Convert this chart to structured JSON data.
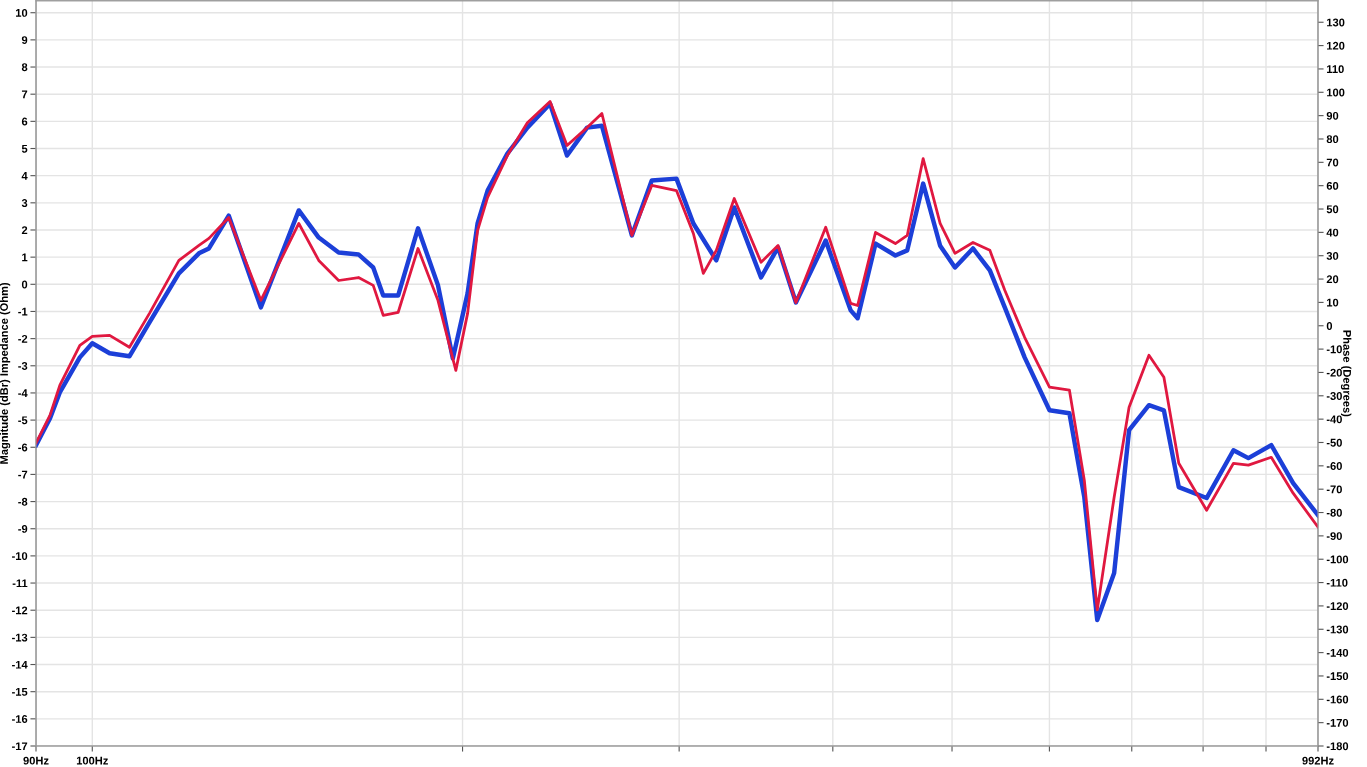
{
  "chart_data": {
    "type": "line",
    "xlabel": null,
    "ylabel": "Magnitude (dBr) Impedance (Ohm)",
    "y2label": "Phase (Degrees)",
    "log": "x",
    "xlim": [
      90,
      992
    ],
    "xticks": [
      {
        "value": 90,
        "label": "90Hz"
      },
      {
        "value": 100,
        "label": "100Hz"
      },
      {
        "value": 200,
        "label": null
      },
      {
        "value": 300,
        "label": null
      },
      {
        "value": 400,
        "label": null
      },
      {
        "value": 500,
        "label": null
      },
      {
        "value": 600,
        "label": null
      },
      {
        "value": 700,
        "label": null
      },
      {
        "value": 800,
        "label": null
      },
      {
        "value": 900,
        "label": null
      },
      {
        "value": 992,
        "label": "992Hz"
      }
    ],
    "ylim": [
      -17,
      10.44
    ],
    "yticks": [
      -17,
      -16,
      -15,
      -14,
      -13,
      -12,
      -11,
      -10,
      -9,
      -8,
      -7,
      -6,
      -5,
      -4,
      -3,
      -2,
      -1,
      0,
      1,
      2,
      3,
      4,
      5,
      6,
      7,
      8,
      9,
      10
    ],
    "y2lim": [
      -180,
      139.2
    ],
    "y2ticks": [
      -180,
      -170,
      -160,
      -150,
      -140,
      -130,
      -120,
      -110,
      -100,
      -90,
      -80,
      -70,
      -60,
      -50,
      -40,
      -30,
      -20,
      -10,
      0,
      10,
      20,
      30,
      40,
      50,
      60,
      70,
      80,
      90,
      100,
      110,
      120,
      130
    ],
    "grid": true,
    "marker": "none",
    "line_style": "solid",
    "series": [
      {
        "color": "#1c3fd8",
        "x": [
          90,
          92.4,
          94.1,
          97.7,
          100,
          103.3,
          107.2,
          111.3,
          117.6,
          122.1,
          124.4,
          129.1,
          137.1,
          147.2,
          152.8,
          158.6,
          164.6,
          169.2,
          172.4,
          177.3,
          184.0,
          191.0,
          196.4,
          201.9,
          205.7,
          209.6,
          217.5,
          225.8,
          235.6,
          243.2,
          252.5,
          259.6,
          274.6,
          285.0,
          298.5,
          308.1,
          321.6,
          332.6,
          349.7,
          361.0,
          373.3,
          394.7,
          413.6,
          419.0,
          433.3,
          449.7,
          459.8,
          473.7,
          489.0,
          502.8,
          520.0,
          536.7,
          551.9,
          572.8,
          600.1,
          622.9,
          640.5,
          656.2,
          677.3,
          696.5,
          722.9,
          743.4,
          764.4,
          805.3,
          846.8,
          870.8,
          908.9,
          946.9,
          992
        ],
        "values": [
          -5.93,
          -4.93,
          -3.98,
          -2.69,
          -2.17,
          -2.54,
          -2.65,
          -1.4,
          0.4,
          1.14,
          1.32,
          2.53,
          -0.85,
          2.72,
          1.72,
          1.17,
          1.1,
          0.62,
          -0.41,
          -0.41,
          2.06,
          -0.03,
          -2.73,
          -0.33,
          2.24,
          3.45,
          4.81,
          5.77,
          6.65,
          4.74,
          5.77,
          5.84,
          1.8,
          3.82,
          3.89,
          2.24,
          0.88,
          2.83,
          0.25,
          1.36,
          -0.67,
          1.61,
          -0.96,
          -1.25,
          1.5,
          1.06,
          1.25,
          3.71,
          1.42,
          0.62,
          1.32,
          0.51,
          -0.85,
          -2.69,
          -4.64,
          -4.75,
          -7.84,
          -12.36,
          -10.63,
          -5.37,
          -4.45,
          -4.64,
          -7.47,
          -7.87,
          -6.11,
          -6.4,
          -5.92,
          -7.32,
          -8.5
        ]
      },
      {
        "color": "#e01840",
        "x": [
          90,
          92.4,
          94.1,
          97.7,
          100,
          103.3,
          107.2,
          111.3,
          117.6,
          122.1,
          124.4,
          129.1,
          137.1,
          147.2,
          152.8,
          158.6,
          164.6,
          169.2,
          172.4,
          177.3,
          184.0,
          191.0,
          197.5,
          201.9,
          205.7,
          209.6,
          217.5,
          225.8,
          235.6,
          243.2,
          252.5,
          259.6,
          274.6,
          285.0,
          298.5,
          308.1,
          313.9,
          321.6,
          332.6,
          349.7,
          361.0,
          373.3,
          394.7,
          413.6,
          419.0,
          433.3,
          449.7,
          459.8,
          473.7,
          489.0,
          502.8,
          520.0,
          536.7,
          551.9,
          572.8,
          600.1,
          622.9,
          640.5,
          656.2,
          677.3,
          696.5,
          722.9,
          743.4,
          764.4,
          805.3,
          846.8,
          870.8,
          908.9,
          946.9,
          992
        ],
        "values": [
          -5.85,
          -4.82,
          -3.72,
          -2.25,
          -1.92,
          -1.88,
          -2.32,
          -1.07,
          0.88,
          1.43,
          1.69,
          2.46,
          -0.59,
          2.24,
          0.88,
          0.14,
          0.25,
          -0.04,
          -1.14,
          -1.03,
          1.32,
          -0.59,
          -3.17,
          -1.07,
          1.98,
          3.2,
          4.74,
          5.95,
          6.73,
          5.11,
          5.77,
          6.29,
          1.8,
          3.64,
          3.45,
          1.87,
          0.4,
          1.25,
          3.16,
          0.81,
          1.43,
          -0.67,
          2.1,
          -0.7,
          -0.78,
          1.91,
          1.5,
          1.8,
          4.63,
          2.24,
          1.14,
          1.54,
          1.25,
          -0.22,
          -1.95,
          -3.79,
          -3.9,
          -7.21,
          -11.99,
          -7.84,
          -4.53,
          -2.61,
          -3.42,
          -6.59,
          -8.32,
          -6.59,
          -6.66,
          -6.37,
          -7.69,
          -8.94
        ]
      }
    ]
  }
}
